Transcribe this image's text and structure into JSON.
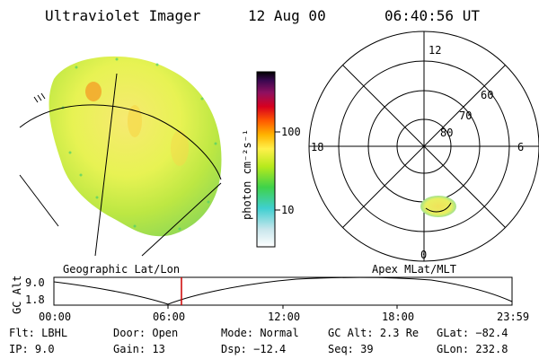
{
  "header": {
    "instrument": "Ultraviolet Imager",
    "date": "12 Aug 00",
    "time": "06:40:56 UT"
  },
  "left_panel": {
    "label": "Geographic Lat/Lon"
  },
  "right_panel": {
    "label": "Apex MLat/MLT",
    "mlt_labels": {
      "top": "12",
      "left": "18",
      "right": "6",
      "bottom": "0"
    },
    "lat_labels": [
      "60",
      "70",
      "80"
    ]
  },
  "colorbar": {
    "unit_label": "photon cm⁻²s⁻¹",
    "ticks": [
      "100",
      "10"
    ]
  },
  "altitude_plot": {
    "ylabel": "GC Alt",
    "yticks": [
      "9.0",
      "1.8"
    ],
    "xticks": [
      "00:00",
      "06:00",
      "12:00",
      "18:00",
      "23:59"
    ],
    "current_time_marker_color": "#cc0000"
  },
  "info": {
    "flt": {
      "label": "Flt:",
      "value": "LBHL"
    },
    "ip": {
      "label": "IP:",
      "value": "9.0"
    },
    "door": {
      "label": "Door:",
      "value": "Open"
    },
    "gain": {
      "label": "Gain:",
      "value": "13"
    },
    "mode": {
      "label": "Mode:",
      "value": "Normal"
    },
    "dsp": {
      "label": "Dsp:",
      "value": "−12.4"
    },
    "gcalt": {
      "label": "GC Alt:",
      "value": "2.3 Re"
    },
    "seq": {
      "label": "Seq:",
      "value": "39"
    },
    "glat": {
      "label": "GLat:",
      "value": "−82.4"
    },
    "glon": {
      "label": "GLon:",
      "value": "232.8"
    }
  }
}
